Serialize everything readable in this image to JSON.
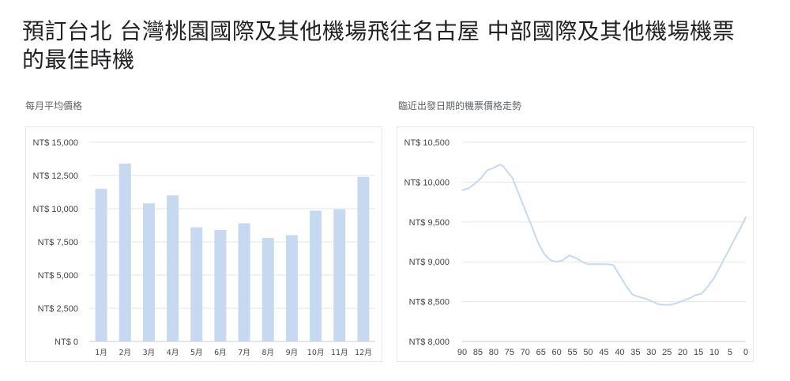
{
  "title": "預訂台北 台灣桃園國際及其他機場飛往名古屋 中部國際及其他機場機票的最佳時機",
  "colors": {
    "bar": "#c6d9f1",
    "line": "#c6d9f1",
    "grid": "#e6e6e6",
    "axis": "#cccccc"
  },
  "chart_data": [
    {
      "type": "bar",
      "label": "每月平均價格",
      "categories": [
        "1月",
        "2月",
        "3月",
        "4月",
        "5月",
        "6月",
        "7月",
        "8月",
        "9月",
        "10月",
        "11月",
        "12月"
      ],
      "values": [
        11500,
        13400,
        10400,
        11000,
        8600,
        8400,
        8900,
        7800,
        8000,
        9850,
        9950,
        12400
      ],
      "ylim": [
        0,
        15000
      ],
      "yticks": [
        0,
        2500,
        5000,
        7500,
        10000,
        12500,
        15000
      ],
      "ytick_labels": [
        "NT$ 0",
        "NT$ 2,500",
        "NT$ 5,000",
        "NT$ 7,500",
        "NT$ 10,000",
        "NT$ 12,500",
        "NT$ 15,000"
      ],
      "grid": true
    },
    {
      "type": "line",
      "label": "臨近出發日期的機票價格走勢",
      "x": [
        90,
        88,
        86,
        84,
        82,
        80,
        78,
        77,
        76,
        74,
        72,
        70,
        68,
        66,
        64,
        62,
        60,
        58,
        56,
        54,
        52,
        50,
        48,
        46,
        44,
        42,
        40,
        38,
        36,
        34,
        32,
        30,
        28,
        26,
        24,
        22,
        20,
        18,
        16,
        14,
        12,
        10,
        8,
        6,
        4,
        2,
        0
      ],
      "y": [
        9900,
        9920,
        9980,
        10050,
        10150,
        10180,
        10220,
        10200,
        10150,
        10050,
        9850,
        9650,
        9450,
        9250,
        9100,
        9020,
        9000,
        9020,
        9080,
        9050,
        9000,
        8970,
        8970,
        8970,
        8970,
        8960,
        8830,
        8700,
        8590,
        8560,
        8540,
        8510,
        8470,
        8460,
        8460,
        8480,
        8510,
        8540,
        8580,
        8600,
        8690,
        8800,
        8950,
        9100,
        9250,
        9400,
        9560
      ],
      "xlim": [
        90,
        0
      ],
      "ylim": [
        8000,
        10500
      ],
      "xticks": [
        90,
        85,
        80,
        75,
        70,
        65,
        60,
        55,
        50,
        45,
        40,
        35,
        30,
        25,
        20,
        15,
        10,
        5,
        0
      ],
      "yticks": [
        8000,
        8500,
        9000,
        9500,
        10000,
        10500
      ],
      "ytick_labels": [
        "NT$ 8,000",
        "NT$ 8,500",
        "NT$ 9,000",
        "NT$ 9,500",
        "NT$ 10,000",
        "NT$ 10,500"
      ],
      "grid": true
    }
  ]
}
